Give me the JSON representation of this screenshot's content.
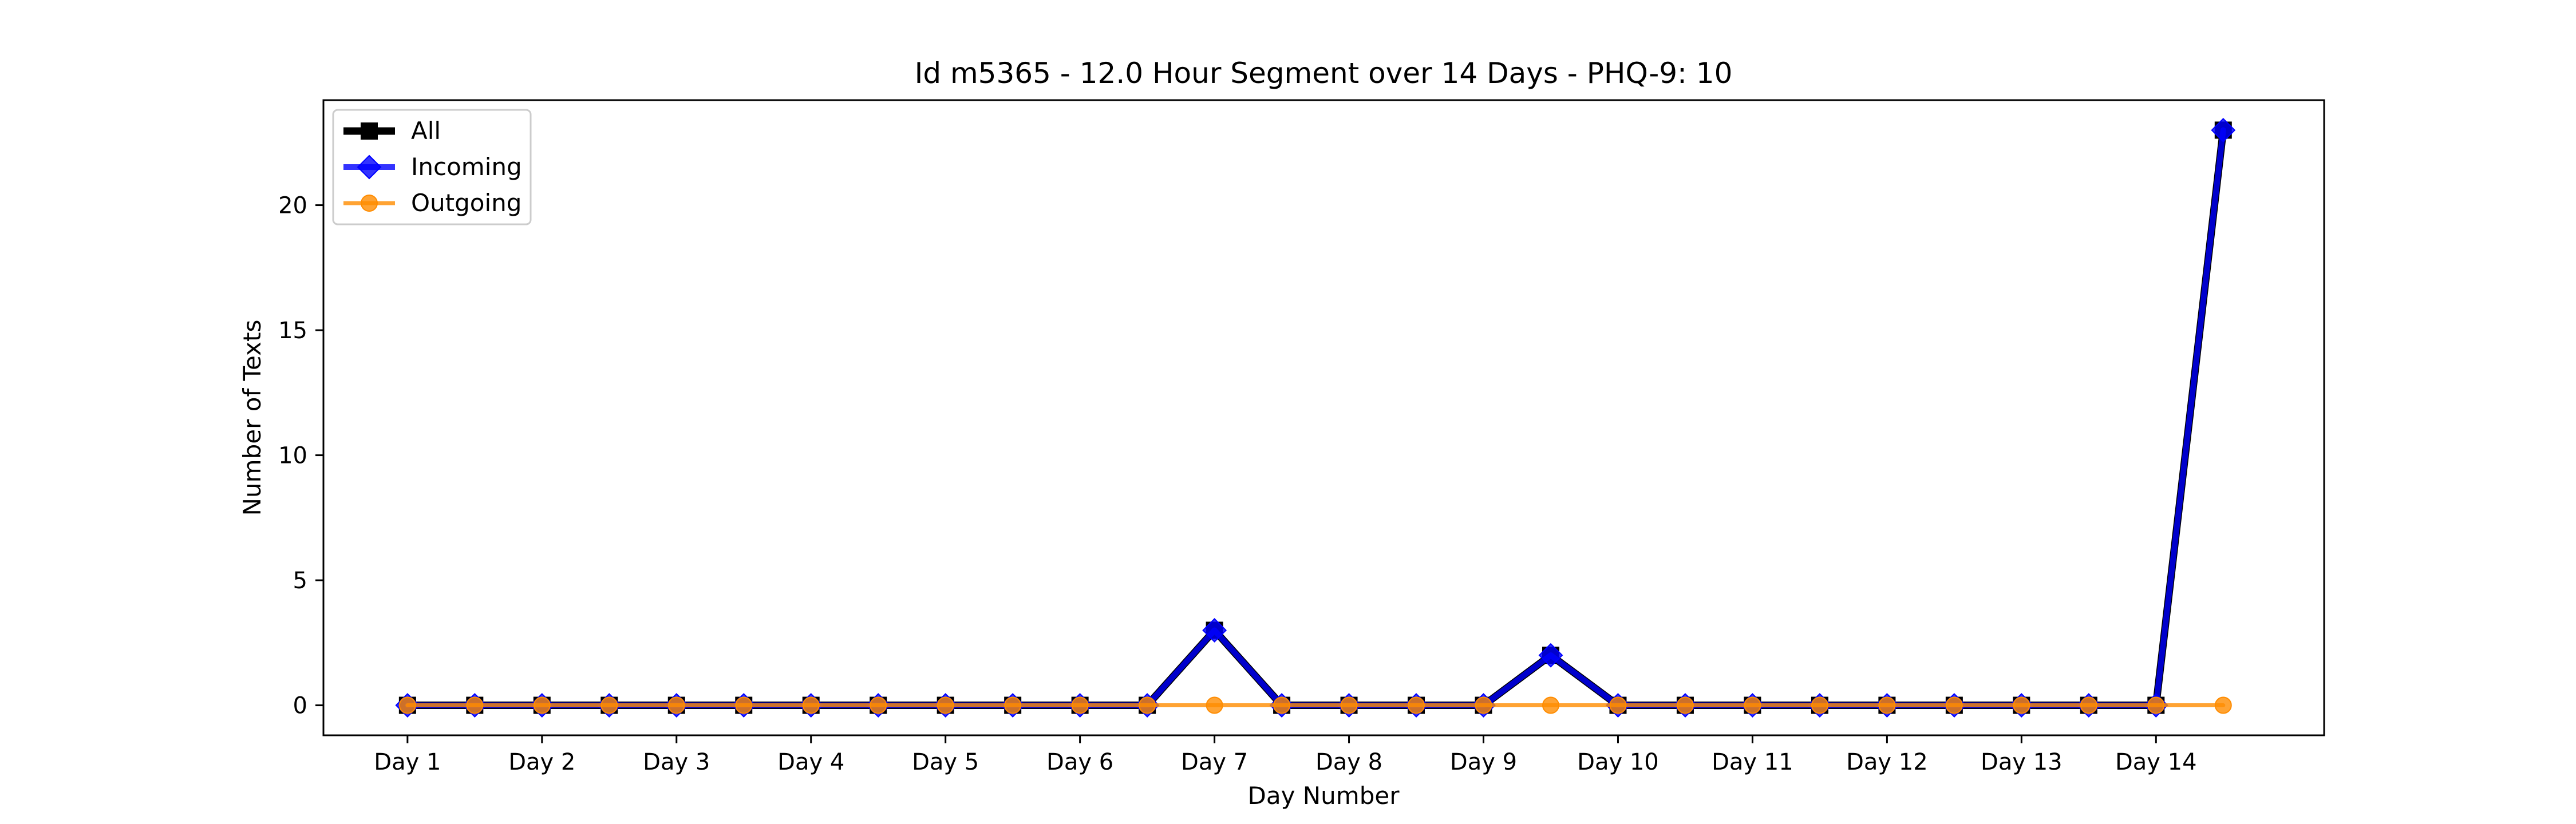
{
  "chart_data": {
    "type": "line",
    "title": "Id m5365 - 12.0 Hour Segment over 14 Days - PHQ-9: 10",
    "xlabel": "Day Number",
    "ylabel": "Number of Texts",
    "ylim": [
      -1.2,
      24.2
    ],
    "xlim": [
      -1.25,
      28.5
    ],
    "xticks": {
      "positions": [
        0,
        2,
        4,
        6,
        8,
        10,
        12,
        14,
        16,
        18,
        20,
        22,
        24,
        26
      ],
      "labels": [
        "Day 1",
        "Day 2",
        "Day 3",
        "Day 4",
        "Day 5",
        "Day 6",
        "Day 7",
        "Day 8",
        "Day 9",
        "Day 10",
        "Day 11",
        "Day 12",
        "Day 13",
        "Day 14"
      ]
    },
    "yticks": [
      0,
      5,
      10,
      15,
      20
    ],
    "grid": false,
    "legend_position": "upper-left",
    "x": [
      0,
      1,
      2,
      3,
      4,
      5,
      6,
      7,
      8,
      9,
      10,
      11,
      12,
      13,
      14,
      15,
      16,
      17,
      18,
      19,
      20,
      21,
      22,
      23,
      24,
      25,
      26,
      27
    ],
    "series": [
      {
        "name": "All",
        "color": "#000000",
        "marker": "square",
        "values": [
          0,
          0,
          0,
          0,
          0,
          0,
          0,
          0,
          0,
          0,
          0,
          0,
          3,
          0,
          0,
          0,
          0,
          2,
          0,
          0,
          0,
          0,
          0,
          0,
          0,
          0,
          0,
          23
        ]
      },
      {
        "name": "Incoming",
        "color": "#0000ff",
        "marker": "diamond",
        "values": [
          0,
          0,
          0,
          0,
          0,
          0,
          0,
          0,
          0,
          0,
          0,
          0,
          3,
          0,
          0,
          0,
          0,
          2,
          0,
          0,
          0,
          0,
          0,
          0,
          0,
          0,
          0,
          23
        ]
      },
      {
        "name": "Outgoing",
        "color": "#ff8c00",
        "marker": "circle",
        "values": [
          0,
          0,
          0,
          0,
          0,
          0,
          0,
          0,
          0,
          0,
          0,
          0,
          0,
          0,
          0,
          0,
          0,
          0,
          0,
          0,
          0,
          0,
          0,
          0,
          0,
          0,
          0,
          0
        ]
      }
    ]
  }
}
